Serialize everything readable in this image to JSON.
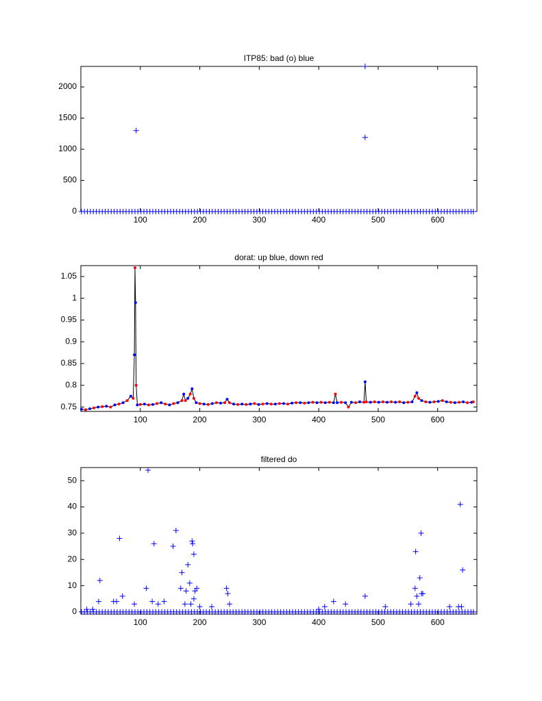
{
  "chart_data": [
    {
      "type": "scatter",
      "title": "ITP85: bad (o) blue",
      "xlim": [
        0,
        666
      ],
      "xticks": [
        100,
        200,
        300,
        400,
        500,
        600
      ],
      "ylim": [
        0,
        2330
      ],
      "yticks": [
        0,
        500,
        1000,
        1500,
        2000
      ],
      "series": [
        {
          "color": "#0000ff",
          "x": [
            1,
            6,
            11,
            16,
            21,
            26,
            31,
            36,
            41,
            46,
            51,
            56,
            61,
            66,
            71,
            76,
            81,
            86,
            91,
            96,
            101,
            106,
            111,
            116,
            121,
            126,
            131,
            136,
            141,
            146,
            151,
            156,
            161,
            166,
            171,
            176,
            181,
            186,
            191,
            196,
            201,
            206,
            211,
            216,
            221,
            226,
            231,
            236,
            241,
            246,
            251,
            256,
            261,
            266,
            271,
            276,
            281,
            286,
            291,
            296,
            301,
            306,
            311,
            316,
            321,
            326,
            331,
            336,
            341,
            346,
            351,
            356,
            361,
            366,
            371,
            376,
            381,
            386,
            391,
            396,
            401,
            406,
            411,
            416,
            421,
            426,
            431,
            436,
            441,
            446,
            451,
            456,
            461,
            466,
            471,
            476,
            481,
            486,
            491,
            496,
            501,
            506,
            511,
            516,
            521,
            526,
            531,
            536,
            541,
            546,
            551,
            556,
            561,
            566,
            571,
            576,
            581,
            586,
            591,
            596,
            601,
            606,
            611,
            616,
            621,
            626,
            631,
            636,
            641,
            646,
            651,
            656,
            660
          ],
          "values": [
            0,
            0,
            0,
            0,
            0,
            0,
            0,
            0,
            0,
            0,
            0,
            0,
            0,
            0,
            0,
            0,
            0,
            0,
            0,
            0,
            0,
            0,
            0,
            0,
            0,
            0,
            0,
            0,
            0,
            0,
            0,
            0,
            0,
            0,
            0,
            0,
            0,
            0,
            0,
            0,
            0,
            0,
            0,
            0,
            0,
            0,
            0,
            0,
            0,
            0,
            0,
            0,
            0,
            0,
            0,
            0,
            0,
            0,
            0,
            0,
            0,
            0,
            0,
            0,
            0,
            0,
            0,
            0,
            0,
            0,
            0,
            0,
            0,
            0,
            0,
            0,
            0,
            0,
            0,
            0,
            0,
            0,
            0,
            0,
            0,
            0,
            0,
            0,
            0,
            0,
            0,
            0,
            0,
            0,
            0,
            0,
            0,
            0,
            0,
            0,
            0,
            0,
            0,
            0,
            0,
            0,
            0,
            0,
            0,
            0,
            0,
            0,
            0,
            0,
            0,
            0,
            0,
            0,
            0,
            0,
            0,
            0,
            0,
            0,
            0,
            0,
            0,
            0,
            0,
            0,
            0,
            0,
            0
          ]
        },
        {
          "color": "#0000ff",
          "x": [
            93,
            478,
            478
          ],
          "values": [
            1300,
            1190,
            2330
          ]
        }
      ]
    },
    {
      "type": "line",
      "title": "dorat: up blue, down red",
      "xlim": [
        0,
        666
      ],
      "xticks": [
        100,
        200,
        300,
        400,
        500,
        600
      ],
      "ylim": [
        0.74,
        1.075
      ],
      "yticks": [
        0.75,
        0.8,
        0.85,
        0.9,
        0.95,
        1,
        1.05
      ],
      "series": [
        {
          "color": "#000000",
          "marker_colors": [
            "#0000ff",
            "#ff0000"
          ],
          "x": [
            1,
            8,
            15,
            22,
            29,
            36,
            43,
            50,
            57,
            64,
            71,
            78,
            84,
            88,
            90,
            91,
            92,
            93,
            95,
            100,
            107,
            114,
            121,
            128,
            135,
            142,
            149,
            156,
            163,
            170,
            173,
            176,
            180,
            184,
            187,
            190,
            194,
            200,
            207,
            214,
            221,
            228,
            235,
            242,
            246,
            250,
            257,
            264,
            271,
            278,
            285,
            292,
            299,
            306,
            313,
            320,
            327,
            334,
            341,
            348,
            355,
            362,
            369,
            376,
            383,
            390,
            397,
            404,
            411,
            418,
            425,
            428,
            431,
            438,
            445,
            450,
            455,
            462,
            469,
            476,
            478,
            480,
            487,
            494,
            501,
            508,
            515,
            522,
            529,
            536,
            543,
            550,
            557,
            562,
            565,
            568,
            573,
            580,
            587,
            594,
            601,
            608,
            615,
            622,
            629,
            636,
            643,
            650,
            657,
            660
          ],
          "values": [
            0.745,
            0.744,
            0.746,
            0.748,
            0.75,
            0.751,
            0.752,
            0.75,
            0.755,
            0.757,
            0.76,
            0.765,
            0.775,
            0.77,
            0.87,
            1.07,
            0.99,
            0.8,
            0.755,
            0.756,
            0.757,
            0.755,
            0.756,
            0.758,
            0.76,
            0.757,
            0.755,
            0.758,
            0.76,
            0.765,
            0.78,
            0.765,
            0.77,
            0.78,
            0.792,
            0.77,
            0.76,
            0.758,
            0.757,
            0.756,
            0.758,
            0.76,
            0.759,
            0.76,
            0.768,
            0.76,
            0.757,
            0.756,
            0.757,
            0.756,
            0.757,
            0.758,
            0.756,
            0.757,
            0.758,
            0.757,
            0.757,
            0.758,
            0.758,
            0.757,
            0.759,
            0.76,
            0.76,
            0.759,
            0.76,
            0.761,
            0.76,
            0.761,
            0.76,
            0.761,
            0.76,
            0.78,
            0.76,
            0.761,
            0.76,
            0.75,
            0.761,
            0.76,
            0.762,
            0.761,
            0.808,
            0.762,
            0.761,
            0.762,
            0.761,
            0.762,
            0.761,
            0.762,
            0.761,
            0.762,
            0.76,
            0.761,
            0.762,
            0.775,
            0.783,
            0.77,
            0.765,
            0.762,
            0.761,
            0.762,
            0.763,
            0.765,
            0.762,
            0.761,
            0.76,
            0.761,
            0.762,
            0.76,
            0.761,
            0.762
          ]
        }
      ]
    },
    {
      "type": "scatter",
      "title": "filtered do",
      "xlim": [
        0,
        666
      ],
      "xticks": [
        100,
        200,
        300,
        400,
        500,
        600
      ],
      "ylim": [
        -0.8,
        55
      ],
      "yticks": [
        0,
        10,
        20,
        30,
        40,
        50
      ],
      "series": [
        {
          "color": "#0000ff",
          "x": [
            1,
            6,
            11,
            16,
            21,
            26,
            31,
            36,
            41,
            46,
            51,
            56,
            61,
            66,
            71,
            76,
            81,
            86,
            91,
            96,
            101,
            106,
            111,
            116,
            121,
            126,
            131,
            136,
            141,
            146,
            151,
            156,
            161,
            166,
            171,
            176,
            181,
            186,
            191,
            196,
            201,
            206,
            211,
            216,
            221,
            226,
            231,
            236,
            241,
            246,
            251,
            256,
            261,
            266,
            271,
            276,
            281,
            286,
            291,
            296,
            301,
            306,
            311,
            316,
            321,
            326,
            331,
            336,
            341,
            346,
            351,
            356,
            361,
            366,
            371,
            376,
            381,
            386,
            391,
            396,
            401,
            406,
            411,
            416,
            421,
            426,
            431,
            436,
            441,
            446,
            451,
            456,
            461,
            466,
            471,
            476,
            481,
            486,
            491,
            496,
            501,
            506,
            511,
            516,
            521,
            526,
            531,
            536,
            541,
            546,
            551,
            556,
            561,
            566,
            571,
            576,
            581,
            586,
            591,
            596,
            601,
            606,
            611,
            616,
            621,
            626,
            631,
            636,
            641,
            646,
            651,
            656,
            660
          ],
          "values": [
            0,
            0,
            0,
            0,
            0,
            0,
            0,
            0,
            0,
            0,
            0,
            0,
            0,
            0,
            0,
            0,
            0,
            0,
            0,
            0,
            0,
            0,
            0,
            0,
            0,
            0,
            0,
            0,
            0,
            0,
            0,
            0,
            0,
            0,
            0,
            0,
            0,
            0,
            0,
            0,
            0,
            0,
            0,
            0,
            0,
            0,
            0,
            0,
            0,
            0,
            0,
            0,
            0,
            0,
            0,
            0,
            0,
            0,
            0,
            0,
            0,
            0,
            0,
            0,
            0,
            0,
            0,
            0,
            0,
            0,
            0,
            0,
            0,
            0,
            0,
            0,
            0,
            0,
            0,
            0,
            0,
            0,
            0,
            0,
            0,
            0,
            0,
            0,
            0,
            0,
            0,
            0,
            0,
            0,
            0,
            0,
            0,
            0,
            0,
            0,
            0,
            0,
            0,
            0,
            0,
            0,
            0,
            0,
            0,
            0,
            0,
            0,
            0,
            0,
            0,
            0,
            0,
            0,
            0,
            0,
            0,
            0,
            0,
            0,
            0,
            0,
            0,
            0,
            0,
            0,
            0,
            0,
            0
          ]
        },
        {
          "color": "#0000ff",
          "x": [
            10,
            20,
            30,
            32,
            55,
            60,
            65,
            70,
            90,
            110,
            113,
            120,
            123,
            130,
            140,
            155,
            160,
            168,
            170,
            175,
            177,
            180,
            183,
            185,
            187,
            188,
            190,
            190,
            192,
            195,
            200,
            220,
            245,
            247,
            250,
            400,
            410,
            425,
            445,
            478,
            512,
            555,
            562,
            563,
            565,
            568,
            570,
            572,
            573,
            575,
            620,
            635,
            638,
            640,
            642
          ],
          "values": [
            1,
            1,
            4,
            12,
            4,
            4,
            28,
            6,
            3,
            9,
            54,
            4,
            26,
            3,
            4,
            25,
            31,
            9,
            15,
            3,
            8,
            18,
            11,
            3,
            27,
            26,
            22,
            5,
            8,
            9,
            2,
            2,
            9,
            7,
            3,
            1,
            2,
            4,
            3,
            6,
            2,
            3,
            9,
            23,
            6,
            3,
            13,
            30,
            7,
            7,
            2,
            2,
            41,
            2,
            16
          ]
        }
      ]
    }
  ]
}
